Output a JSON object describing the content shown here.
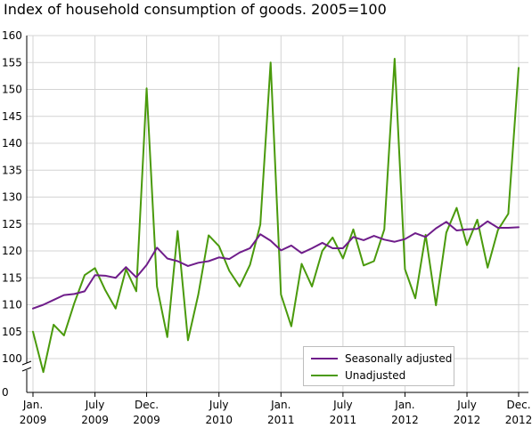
{
  "chart_data": {
    "type": "line",
    "title": "Index of household consumption of goods. 2005=100",
    "xlabel": "",
    "ylabel": "",
    "ylim": [
      100,
      160
    ],
    "y_ticks": [
      160,
      155,
      150,
      145,
      140,
      135,
      130,
      125,
      120,
      115,
      110,
      105,
      100,
      0
    ],
    "y_axis_break": true,
    "x_ticks": [
      {
        "index": 0,
        "line1": "Jan.",
        "line2": "2009"
      },
      {
        "index": 6,
        "line1": "July",
        "line2": "2009"
      },
      {
        "index": 11,
        "line1": "Dec.",
        "line2": "2009"
      },
      {
        "index": 18,
        "line1": "July",
        "line2": "2010"
      },
      {
        "index": 24,
        "line1": "Jan.",
        "line2": "2011"
      },
      {
        "index": 30,
        "line1": "July",
        "line2": "2011"
      },
      {
        "index": 36,
        "line1": "Jan.",
        "line2": "2012"
      },
      {
        "index": 42,
        "line1": "July",
        "line2": "2012"
      },
      {
        "index": 47,
        "line1": "Dec.",
        "line2": "2012"
      }
    ],
    "grid": true,
    "legend_position": "bottom-right",
    "series": [
      {
        "name": "Seasonally adjusted",
        "color": "#6f1d8a",
        "values": [
          109.3,
          110.0,
          110.9,
          111.8,
          112.0,
          112.5,
          115.5,
          115.4,
          115.0,
          117.0,
          115.1,
          117.4,
          120.6,
          118.6,
          118.1,
          117.2,
          117.8,
          118.1,
          118.8,
          118.5,
          119.7,
          120.5,
          123.1,
          121.9,
          120.1,
          121.0,
          119.6,
          120.5,
          121.5,
          120.5,
          120.5,
          122.6,
          122.0,
          122.8,
          122.1,
          121.7,
          122.2,
          123.3,
          122.6,
          124.2,
          125.4,
          123.8,
          124.0,
          124.1,
          125.5,
          124.3,
          124.3,
          124.4
        ]
      },
      {
        "name": "Unadjusted",
        "color": "#4a9a0c",
        "values": [
          105.0,
          97.5,
          106.3,
          104.3,
          110.3,
          115.5,
          116.8,
          112.7,
          109.3,
          116.6,
          112.5,
          150.2,
          113.4,
          104.0,
          123.7,
          103.4,
          111.9,
          122.9,
          120.9,
          116.3,
          113.4,
          117.4,
          124.9,
          155.0,
          111.9,
          106.0,
          117.6,
          113.4,
          120.0,
          122.5,
          118.6,
          124.0,
          117.3,
          118.1,
          124.0,
          155.7,
          116.6,
          111.2,
          123.0,
          109.9,
          123.4,
          128.0,
          121.1,
          125.8,
          116.9,
          123.9,
          126.9,
          154.0
        ]
      }
    ]
  }
}
